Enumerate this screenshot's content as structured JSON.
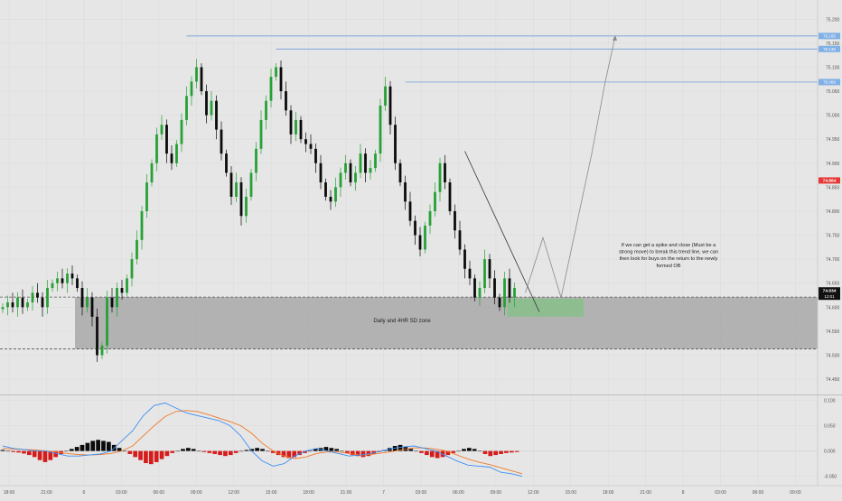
{
  "chart_data": [
    {
      "type": "candlestick",
      "title": "",
      "ylim": [
        74.42,
        75.24
      ],
      "y_ticks": [
        "75.200",
        "75.150",
        "75.100",
        "75.050",
        "75.000",
        "74.950",
        "74.900",
        "74.850",
        "74.800",
        "74.750",
        "74.700",
        "74.650",
        "74.600",
        "74.550",
        "74.500",
        "74.450"
      ],
      "y_tick_values": [
        75.2,
        75.15,
        75.1,
        75.05,
        75.0,
        74.95,
        74.9,
        74.85,
        74.8,
        74.75,
        74.7,
        74.65,
        74.6,
        74.55,
        74.5,
        74.45
      ],
      "candles_close": [
        74.6,
        74.61,
        74.6,
        74.62,
        74.6,
        74.61,
        74.63,
        74.62,
        74.6,
        74.64,
        74.65,
        74.66,
        74.65,
        74.67,
        74.66,
        74.64,
        74.6,
        74.62,
        74.58,
        74.5,
        74.52,
        74.62,
        74.6,
        74.64,
        74.63,
        74.66,
        74.7,
        74.74,
        74.8,
        74.86,
        74.9,
        74.96,
        74.98,
        74.92,
        74.9,
        74.94,
        74.99,
        75.04,
        75.07,
        75.1,
        75.05,
        75.0,
        75.03,
        74.97,
        74.92,
        74.88,
        74.83,
        74.86,
        74.79,
        74.83,
        74.88,
        74.93,
        74.99,
        75.03,
        75.08,
        75.1,
        75.05,
        75.01,
        74.96,
        74.99,
        74.95,
        74.94,
        74.93,
        74.9,
        74.86,
        74.83,
        74.82,
        74.85,
        74.88,
        74.9,
        74.86,
        74.88,
        74.92,
        74.88,
        74.89,
        74.92,
        75.02,
        75.06,
        74.98,
        74.9,
        74.86,
        74.82,
        74.78,
        74.75,
        74.72,
        74.77,
        74.8,
        74.84,
        74.9,
        74.86,
        74.8,
        74.76,
        74.72,
        74.68,
        74.66,
        74.62,
        74.64,
        74.7,
        74.66,
        74.62,
        74.6,
        74.66,
        74.62,
        74.64
      ],
      "price_levels": [
        {
          "label": "75.165",
          "value": 75.165
        },
        {
          "label": "75.138",
          "value": 75.138
        },
        {
          "label": "75.069",
          "value": 75.069
        }
      ],
      "current_price": {
        "label": "74.864",
        "value": 74.864
      },
      "last_price": {
        "label": "74.634",
        "value": 74.634
      },
      "countdown": "12:01",
      "zone": {
        "label": "Daily and 4HR SD zone",
        "top": 74.621,
        "bottom": 74.513
      },
      "order_block": {
        "top": 74.618,
        "bottom": 74.58
      },
      "trendline": {
        "from": 74.925,
        "to": 74.59
      },
      "projection": [
        74.63,
        74.745,
        74.62,
        74.92,
        75.07,
        75.165
      ],
      "annotation": [
        "If we can get a spike and close (Must be a",
        "strong move) to break this trend line, we can",
        "then look for buys on the return to the newly",
        "formed OB"
      ],
      "x_ticks": [
        "18:00",
        "21:00",
        "6",
        "03:00",
        "06:00",
        "09:00",
        "12:00",
        "15:00",
        "18:00",
        "21:00",
        "7",
        "03:00",
        "06:00",
        "09:00",
        "12:00",
        "15:00",
        "18:00",
        "21:00",
        "8",
        "03:00",
        "06:00",
        "09:00"
      ]
    },
    {
      "type": "macd",
      "ylim": [
        -0.065,
        0.11
      ],
      "y_ticks": [
        "0.100",
        "0.050",
        "0.000",
        "-0.050"
      ],
      "y_tick_values": [
        0.1,
        0.05,
        0.0,
        -0.05
      ],
      "macd_line": [
        0.01,
        0.005,
        0.003,
        0.0,
        0.0,
        -0.005,
        -0.01,
        -0.01,
        -0.008,
        -0.006,
        0.0,
        0.02,
        0.04,
        0.07,
        0.09,
        0.095,
        0.085,
        0.075,
        0.07,
        0.065,
        0.06,
        0.05,
        0.03,
        0.0,
        -0.02,
        -0.03,
        -0.025,
        -0.01,
        0.0,
        0.005,
        0.0,
        -0.005,
        -0.01,
        -0.008,
        -0.005,
        0.0,
        0.005,
        0.008,
        0.01,
        0.005,
        0.0,
        -0.01,
        -0.02,
        -0.028,
        -0.03,
        -0.032,
        -0.042,
        -0.045,
        -0.05
      ],
      "signal_line": [
        0.005,
        0.004,
        0.003,
        0.002,
        0.0,
        -0.002,
        -0.005,
        -0.007,
        -0.008,
        -0.007,
        -0.005,
        0.0,
        0.01,
        0.03,
        0.05,
        0.068,
        0.078,
        0.08,
        0.078,
        0.072,
        0.065,
        0.058,
        0.05,
        0.035,
        0.015,
        0.0,
        -0.01,
        -0.015,
        -0.012,
        -0.005,
        -0.002,
        -0.002,
        -0.005,
        -0.008,
        -0.007,
        -0.004,
        -0.001,
        0.003,
        0.006,
        0.006,
        0.004,
        0.0,
        -0.008,
        -0.016,
        -0.022,
        -0.027,
        -0.033,
        -0.039,
        -0.045
      ],
      "histogram": [
        0.002,
        0.0,
        -0.002,
        -0.003,
        -0.005,
        -0.008,
        -0.012,
        -0.018,
        -0.022,
        -0.018,
        -0.012,
        -0.006,
        0.0,
        0.004,
        0.008,
        0.012,
        0.016,
        0.02,
        0.022,
        0.02,
        0.018,
        0.012,
        0.006,
        0.0,
        -0.006,
        -0.012,
        -0.018,
        -0.024,
        -0.026,
        -0.022,
        -0.016,
        -0.01,
        -0.004,
        0.0,
        0.004,
        0.006,
        0.004,
        0.0,
        -0.002,
        -0.004,
        -0.006,
        -0.008,
        -0.01,
        -0.008,
        -0.004,
        0.0,
        0.002,
        0.004,
        0.006,
        0.004,
        0.0,
        -0.004,
        -0.008,
        -0.012,
        -0.014,
        -0.012,
        -0.008,
        -0.004,
        0.0,
        0.004,
        0.006,
        0.008,
        0.006,
        0.004,
        0.0,
        -0.004,
        -0.008,
        -0.01,
        -0.012,
        -0.01,
        -0.006,
        -0.002,
        0.002,
        0.006,
        0.01,
        0.012,
        0.008,
        0.004,
        0.0,
        -0.004,
        -0.008,
        -0.012,
        -0.014,
        -0.012,
        -0.008,
        -0.004,
        0.0,
        0.004,
        0.006,
        0.004,
        0.0,
        -0.006,
        -0.01,
        -0.008,
        -0.006,
        -0.004,
        -0.003,
        -0.002
      ]
    }
  ],
  "colors": {
    "background": "#e6e6e6",
    "bull": "#26a136",
    "bear": "#0b0b0b",
    "level_line": "#5b8fd6",
    "level_label_bg": "#7fb0e6",
    "current_price_bg": "#e53935",
    "last_price_bg": "#111111",
    "zone_fill": "#a8a8a8",
    "ob_fill": "#87c08a",
    "macd_line": "#3d8ff2",
    "signal_line": "#f07a2a",
    "hist_pos": "#0b0b0b",
    "hist_neg": "#d51c1c"
  }
}
